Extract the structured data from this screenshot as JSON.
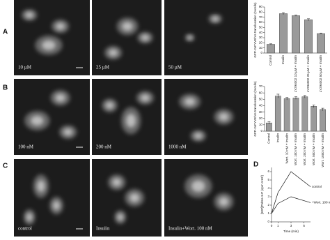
{
  "panel_letters": [
    "A",
    "B",
    "C",
    "D"
  ],
  "image_labels": [
    [
      "10 µM",
      "25 µM",
      "50 µM"
    ],
    [
      "100 nM",
      "200 nM",
      "1000 nM"
    ],
    [
      "control",
      "Insulin",
      "Insulin+Wort. 100 nM"
    ]
  ],
  "chart_data": [
    {
      "type": "bar",
      "y_label": "GFP-2xFYVEhrs translocation (%cells)",
      "categories": [
        "Control",
        "Insulin",
        "LY294002 10 µM + Insulin",
        "LY294002 25 µM + Insulin",
        "LY294002 50 µM + Insulin"
      ],
      "values": [
        17,
        77,
        73,
        65,
        38
      ],
      "errors": [
        1,
        2,
        1,
        2,
        1
      ],
      "color": "#9a9a9a",
      "ylim": [
        0,
        90
      ],
      "yticks": [
        0,
        10,
        20,
        30,
        40,
        50,
        60,
        70,
        80,
        90
      ]
    },
    {
      "type": "bar",
      "y_label": "GFP-2xFYVEhrs translocation (%cells)",
      "categories": [
        "Control",
        "Insulin",
        "Wort. 10 nM + Insulin",
        "Wort. 100 nM + Insulin",
        "Wort. 200 nM + Insulin",
        "Wort. 500 nM + Insulin",
        "Wort. 1000 nM + Insulin"
      ],
      "values": [
        13,
        55,
        51,
        52,
        54,
        39,
        34
      ],
      "errors": [
        2,
        3,
        2,
        2,
        2,
        2,
        2
      ],
      "color": "#9a9a9a",
      "ylim": [
        0,
        70
      ],
      "yticks": [
        0,
        10,
        20,
        30,
        40,
        50,
        60,
        70
      ]
    },
    {
      "type": "line",
      "y_label": "[32P]PtdIns-3-P (cpm X10³)",
      "x_label": "Time (min)",
      "x": [
        0,
        1,
        3,
        6
      ],
      "series": [
        {
          "name": "control",
          "color": "#111",
          "values": [
            1,
            3.5,
            6,
            4.2
          ]
        },
        {
          "name": "+Wort. 100 nM",
          "color": "#111",
          "values": [
            1,
            2.2,
            3,
            2.3
          ]
        }
      ],
      "xlim": [
        0,
        6
      ],
      "xticks": [
        0,
        1,
        3,
        5
      ],
      "ylim": [
        0,
        6.5
      ],
      "yticks": [
        0,
        1,
        2,
        3,
        4,
        5,
        6
      ]
    }
  ]
}
